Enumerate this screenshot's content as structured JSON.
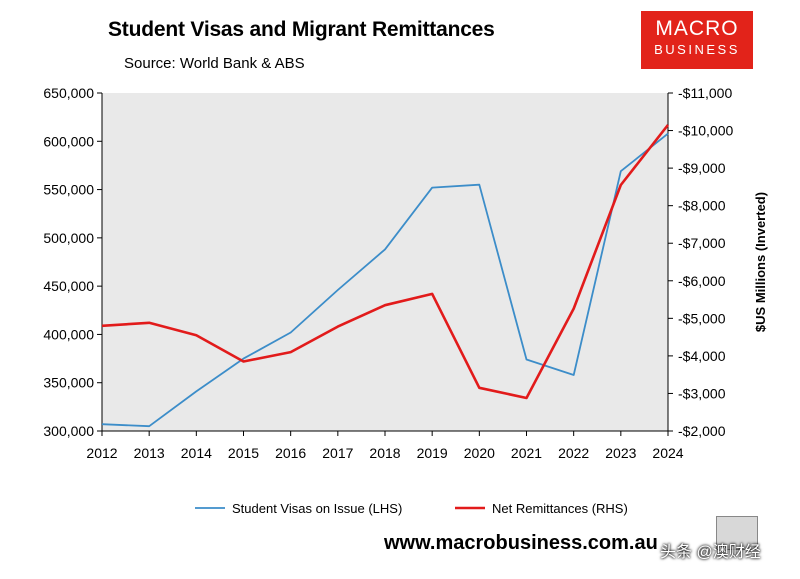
{
  "title": "Student Visas and Migrant Remittances",
  "subtitle": "Source: World Bank & ABS",
  "logo": {
    "line1": "MACRO",
    "line2": "BUSINESS",
    "color": "#e2231a"
  },
  "website": "www.macrobusiness.com.au",
  "watermark": "头条 @澳财经",
  "chart_data": {
    "type": "line",
    "x": [
      2012,
      2013,
      2014,
      2015,
      2016,
      2017,
      2018,
      2019,
      2020,
      2021,
      2022,
      2023,
      2024
    ],
    "left_axis": {
      "ylim": [
        300000,
        650000
      ],
      "ticks": [
        "300,000",
        "350,000",
        "400,000",
        "450,000",
        "500,000",
        "550,000",
        "600,000",
        "650,000"
      ],
      "label": ""
    },
    "right_axis": {
      "ylim": [
        -2000,
        -11000
      ],
      "inverted": true,
      "ticks": [
        "-$2,000",
        "-$3,000",
        "-$4,000",
        "-$5,000",
        "-$6,000",
        "-$7,000",
        "-$8,000",
        "-$9,000",
        "-$10,000",
        "-$11,000"
      ],
      "label": "$US Millions (Inverted)"
    },
    "x_ticks": [
      "2012",
      "2013",
      "2014",
      "2015",
      "2016",
      "2017",
      "2018",
      "2019",
      "2020",
      "2021",
      "2022",
      "2023",
      "2024"
    ],
    "grid": false,
    "legend_position": "bottom",
    "series": [
      {
        "name": "Student Visas on Issue (LHS)",
        "axis": "left",
        "color": "#3c8dc9",
        "values": [
          307000,
          305000,
          341000,
          375000,
          402000,
          446000,
          488000,
          552000,
          555000,
          374000,
          358000,
          569000,
          608000
        ]
      },
      {
        "name": "Net Remittances (RHS)",
        "axis": "right",
        "color": "#e21b1b",
        "values": [
          -4800,
          -4880,
          -4550,
          -3850,
          -4100,
          -4780,
          -5350,
          -5650,
          -3150,
          -2880,
          -5260,
          -8550,
          -10150
        ]
      }
    ]
  }
}
